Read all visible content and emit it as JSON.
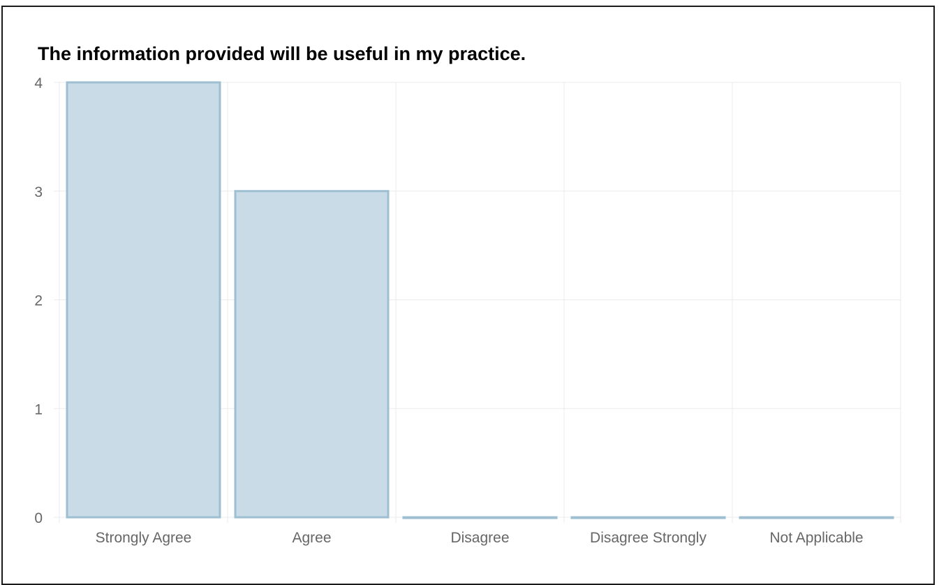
{
  "chart_data": {
    "type": "bar",
    "title": "The information provided will be useful in my practice.",
    "categories": [
      "Strongly Agree",
      "Agree",
      "Disagree",
      "Disagree Strongly",
      "Not Applicable"
    ],
    "values": [
      4,
      3,
      0,
      0,
      0
    ],
    "xlabel": "",
    "ylabel": "",
    "ylim": [
      0,
      4
    ],
    "yticks": [
      0,
      1,
      2,
      3,
      4
    ],
    "grid": true,
    "legend": "none",
    "colors": {
      "bar_fill": "#c9dbe6",
      "bar_stroke": "#9dbfd1",
      "grid": "#ebebeb",
      "tick_text": "#666666"
    }
  }
}
